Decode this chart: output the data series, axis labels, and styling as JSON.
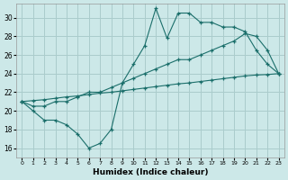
{
  "xlabel": "Humidex (Indice chaleur)",
  "background_color": "#cce8e8",
  "grid_color": "#aacccc",
  "line_color": "#1a6e6a",
  "x_ticks": [
    0,
    1,
    2,
    3,
    4,
    5,
    6,
    7,
    8,
    9,
    10,
    11,
    12,
    13,
    14,
    15,
    16,
    17,
    18,
    19,
    20,
    21,
    22,
    23
  ],
  "y_ticks": [
    16,
    18,
    20,
    22,
    24,
    26,
    28,
    30
  ],
  "xlim": [
    -0.5,
    23.5
  ],
  "ylim": [
    15.0,
    31.5
  ],
  "line1_x": [
    0,
    1,
    2,
    3,
    4,
    5,
    6,
    7,
    8,
    9,
    10,
    11,
    12,
    13,
    14,
    15,
    16,
    17,
    18,
    19,
    20,
    21,
    22,
    23
  ],
  "line1_y": [
    21,
    20,
    19,
    19,
    18.5,
    17.5,
    16,
    16.5,
    18,
    23,
    25,
    27,
    31,
    27.8,
    30.5,
    30.5,
    29.5,
    29.5,
    29.0,
    29.0,
    28.5,
    26.5,
    25,
    24
  ],
  "line2_x": [
    0,
    1,
    2,
    3,
    4,
    5,
    6,
    7,
    8,
    9,
    10,
    11,
    12,
    13,
    14,
    15,
    16,
    17,
    18,
    19,
    20,
    21,
    22,
    23
  ],
  "line2_y": [
    21,
    20.5,
    20.5,
    21,
    21,
    21.5,
    22,
    22,
    22.5,
    23,
    23.5,
    24,
    24.5,
    25,
    25.5,
    25.5,
    26,
    26.5,
    27,
    27.5,
    28.3,
    28,
    26.5,
    24
  ],
  "line3_x": [
    0,
    1,
    2,
    3,
    4,
    5,
    6,
    7,
    8,
    9,
    10,
    11,
    12,
    13,
    14,
    15,
    16,
    17,
    18,
    19,
    20,
    21,
    22,
    23
  ],
  "line3_y": [
    21,
    21.1,
    21.2,
    21.35,
    21.5,
    21.6,
    21.75,
    21.9,
    22.0,
    22.15,
    22.3,
    22.45,
    22.6,
    22.75,
    22.9,
    23.0,
    23.15,
    23.3,
    23.45,
    23.6,
    23.75,
    23.85,
    23.9,
    24.0
  ]
}
